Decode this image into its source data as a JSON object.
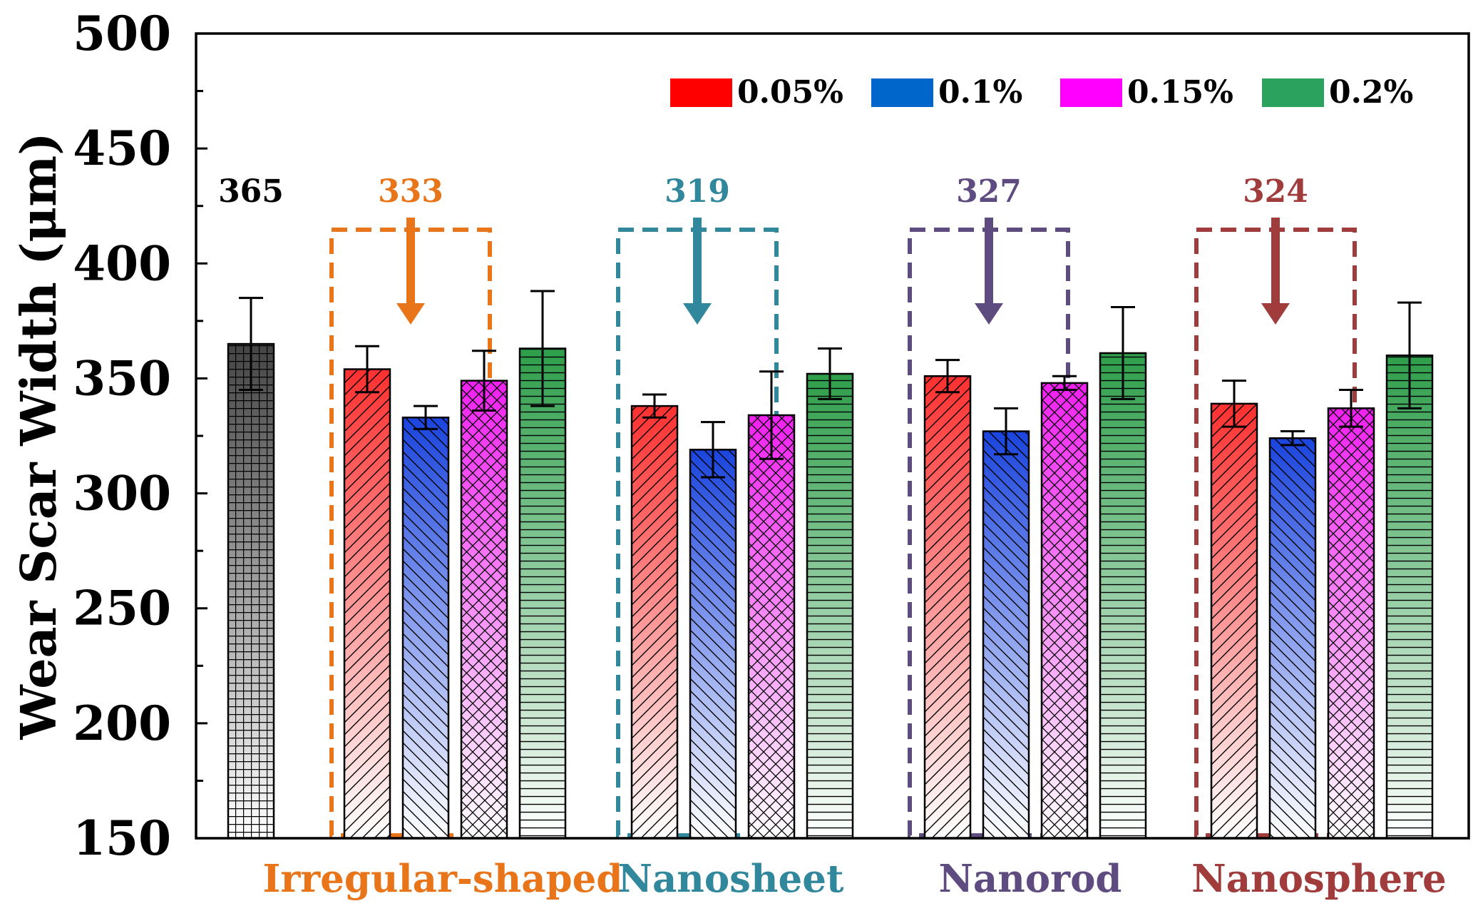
{
  "chart_data": {
    "type": "bar",
    "title": "",
    "xlabel": "",
    "ylabel": "Wear Scar Width (μm)",
    "ylim": [
      150,
      500
    ],
    "yticks": [
      150,
      200,
      250,
      300,
      350,
      400,
      450,
      500
    ],
    "legend_position": "top-right",
    "legend": [
      {
        "name": "0.05%",
        "color": "#ff0000"
      },
      {
        "name": "0.1%",
        "color": "#0066cc"
      },
      {
        "name": "0.15%",
        "color": "#ff00ff"
      },
      {
        "name": "0.2%",
        "color": "#2ca25f"
      }
    ],
    "base": {
      "value": 365,
      "error": 20,
      "color": "#444444",
      "label": "365"
    },
    "groups": [
      {
        "name": "Irregular-shaped",
        "color": "#e8751a",
        "annotation": "333",
        "values": [
          354,
          333,
          349,
          363
        ],
        "errors": [
          10,
          5,
          13,
          25
        ]
      },
      {
        "name": "Nanosheet",
        "color": "#31879b",
        "annotation": "319",
        "values": [
          338,
          319,
          334,
          352
        ],
        "errors": [
          5,
          12,
          19,
          11
        ]
      },
      {
        "name": "Nanorod",
        "color": "#5e4b80",
        "annotation": "327",
        "values": [
          351,
          327,
          348,
          361
        ],
        "errors": [
          7,
          10,
          3,
          20
        ]
      },
      {
        "name": "Nanosphere",
        "color": "#a03c3c",
        "annotation": "324",
        "values": [
          339,
          324,
          337,
          360
        ],
        "errors": [
          10,
          3,
          8,
          23
        ]
      }
    ]
  }
}
